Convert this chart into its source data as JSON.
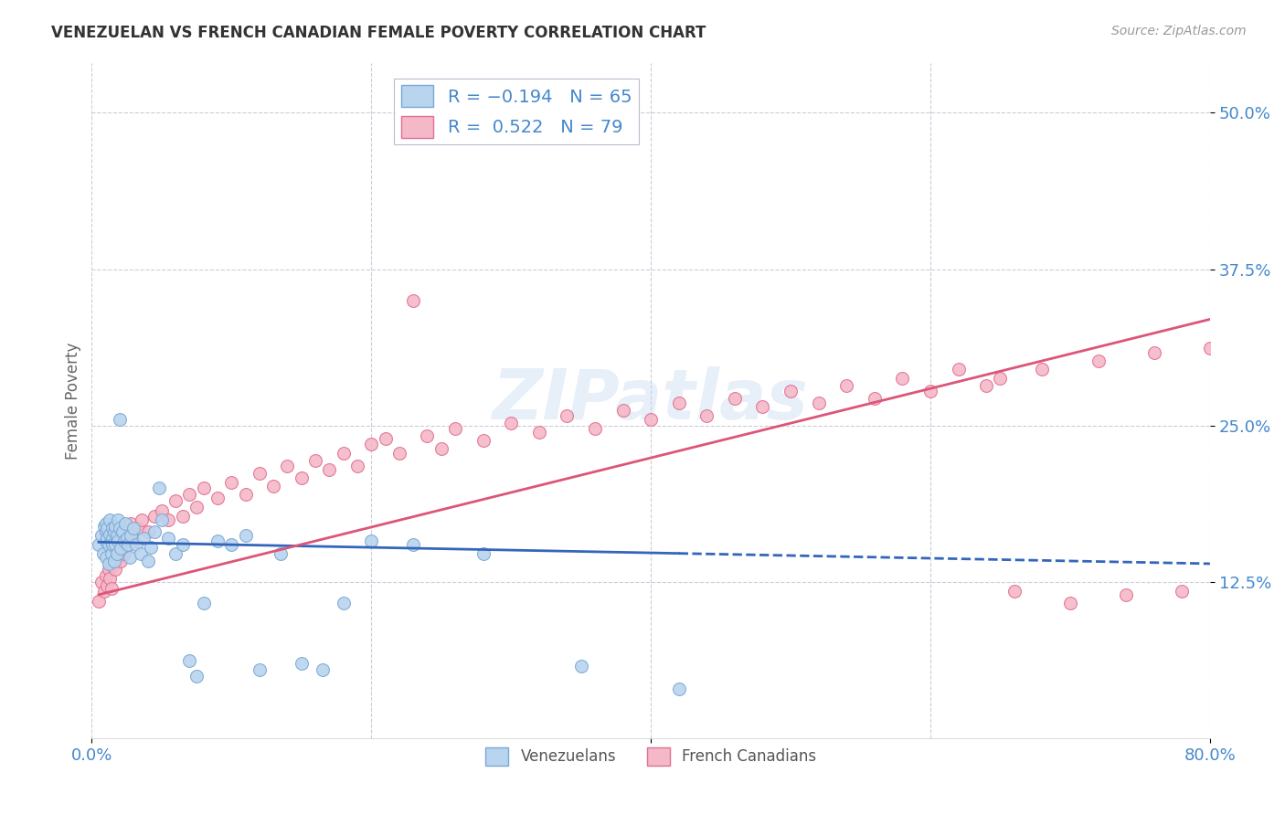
{
  "title": "VENEZUELAN VS FRENCH CANADIAN FEMALE POVERTY CORRELATION CHART",
  "source": "Source: ZipAtlas.com",
  "ylabel": "Female Poverty",
  "ytick_values": [
    0.125,
    0.25,
    0.375,
    0.5
  ],
  "xlim": [
    0.0,
    0.8
  ],
  "ylim": [
    0.0,
    0.54
  ],
  "venezuelan_color": "#b8d4ee",
  "venezuelan_edge": "#7aa8d4",
  "french_canadian_color": "#f5b8c8",
  "french_canadian_edge": "#e07090",
  "trend_color_venezuelan": "#3366bb",
  "trend_color_french": "#dd5577",
  "bg_color": "#ffffff",
  "grid_color": "#ccccdd",
  "title_color": "#333333",
  "axis_label_color": "#4488cc",
  "source_color": "#999999",
  "venezuelan_x": [
    0.005,
    0.007,
    0.008,
    0.009,
    0.01,
    0.01,
    0.01,
    0.01,
    0.011,
    0.011,
    0.012,
    0.012,
    0.013,
    0.013,
    0.014,
    0.014,
    0.015,
    0.015,
    0.015,
    0.016,
    0.016,
    0.017,
    0.017,
    0.018,
    0.018,
    0.019,
    0.019,
    0.02,
    0.02,
    0.021,
    0.022,
    0.023,
    0.024,
    0.025,
    0.026,
    0.027,
    0.028,
    0.03,
    0.032,
    0.035,
    0.037,
    0.04,
    0.042,
    0.045,
    0.048,
    0.05,
    0.055,
    0.06,
    0.065,
    0.07,
    0.075,
    0.08,
    0.09,
    0.1,
    0.11,
    0.12,
    0.135,
    0.15,
    0.165,
    0.18,
    0.2,
    0.23,
    0.28,
    0.35,
    0.42
  ],
  "venezuelan_y": [
    0.155,
    0.162,
    0.148,
    0.17,
    0.165,
    0.158,
    0.145,
    0.172,
    0.16,
    0.168,
    0.155,
    0.14,
    0.163,
    0.175,
    0.158,
    0.148,
    0.16,
    0.168,
    0.155,
    0.165,
    0.142,
    0.17,
    0.155,
    0.162,
    0.148,
    0.175,
    0.158,
    0.255,
    0.168,
    0.152,
    0.165,
    0.158,
    0.172,
    0.16,
    0.155,
    0.145,
    0.162,
    0.168,
    0.155,
    0.148,
    0.16,
    0.142,
    0.153,
    0.165,
    0.2,
    0.175,
    0.16,
    0.148,
    0.155,
    0.062,
    0.05,
    0.108,
    0.158,
    0.155,
    0.162,
    0.055,
    0.148,
    0.06,
    0.055,
    0.108,
    0.158,
    0.155,
    0.148,
    0.058,
    0.04
  ],
  "french_x": [
    0.005,
    0.007,
    0.009,
    0.01,
    0.011,
    0.012,
    0.013,
    0.014,
    0.015,
    0.015,
    0.016,
    0.017,
    0.018,
    0.019,
    0.02,
    0.021,
    0.022,
    0.023,
    0.024,
    0.025,
    0.028,
    0.03,
    0.033,
    0.036,
    0.04,
    0.045,
    0.05,
    0.055,
    0.06,
    0.065,
    0.07,
    0.075,
    0.08,
    0.09,
    0.1,
    0.11,
    0.12,
    0.13,
    0.14,
    0.15,
    0.16,
    0.17,
    0.18,
    0.19,
    0.2,
    0.21,
    0.22,
    0.23,
    0.24,
    0.25,
    0.26,
    0.28,
    0.3,
    0.32,
    0.34,
    0.36,
    0.38,
    0.4,
    0.42,
    0.44,
    0.46,
    0.48,
    0.5,
    0.52,
    0.54,
    0.56,
    0.58,
    0.6,
    0.62,
    0.64,
    0.65,
    0.66,
    0.68,
    0.7,
    0.72,
    0.74,
    0.76,
    0.78,
    0.8
  ],
  "french_y": [
    0.11,
    0.125,
    0.118,
    0.13,
    0.122,
    0.135,
    0.128,
    0.12,
    0.142,
    0.138,
    0.148,
    0.135,
    0.152,
    0.145,
    0.158,
    0.142,
    0.16,
    0.148,
    0.165,
    0.155,
    0.172,
    0.158,
    0.168,
    0.175,
    0.165,
    0.178,
    0.182,
    0.175,
    0.19,
    0.178,
    0.195,
    0.185,
    0.2,
    0.192,
    0.205,
    0.195,
    0.212,
    0.202,
    0.218,
    0.208,
    0.222,
    0.215,
    0.228,
    0.218,
    0.235,
    0.24,
    0.228,
    0.35,
    0.242,
    0.232,
    0.248,
    0.238,
    0.252,
    0.245,
    0.258,
    0.248,
    0.262,
    0.255,
    0.268,
    0.258,
    0.272,
    0.265,
    0.278,
    0.268,
    0.282,
    0.272,
    0.288,
    0.278,
    0.295,
    0.282,
    0.288,
    0.118,
    0.295,
    0.108,
    0.302,
    0.115,
    0.308,
    0.118,
    0.312
  ]
}
